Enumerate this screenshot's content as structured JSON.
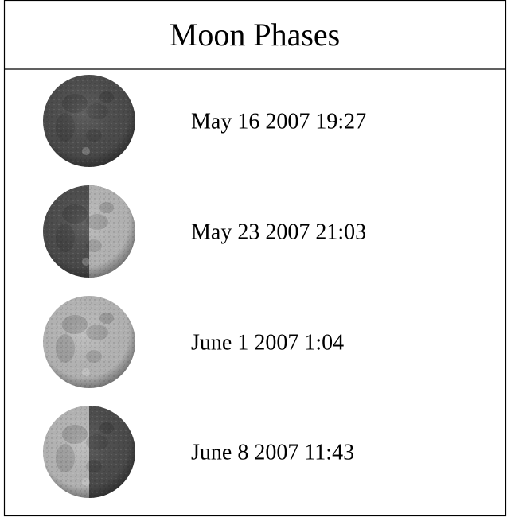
{
  "header": {
    "title": "Moon Phases"
  },
  "rows": [
    {
      "date": "May 16 2007 19:27"
    },
    {
      "date": "May 23 2007 21:03"
    },
    {
      "date": "June 1 2007 1:04"
    },
    {
      "date": "June 8 2007 11:43"
    }
  ]
}
